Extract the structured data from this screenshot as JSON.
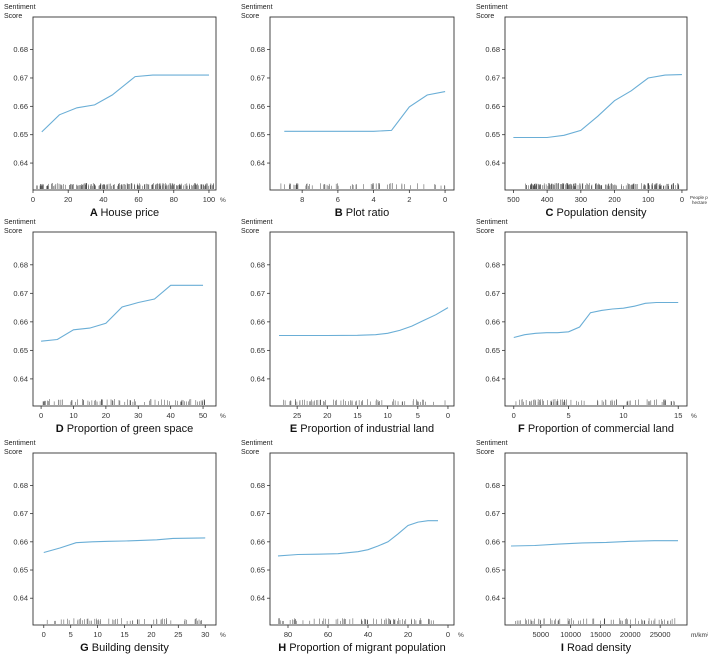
{
  "figure": {
    "y_label_line1": "Sentiment",
    "y_label_line2": "Score"
  },
  "colors": {
    "line": "#6aaed6",
    "frame": "#333333",
    "rug": "#444444"
  },
  "chart_data": [
    {
      "type": "line",
      "letter": "A",
      "title": "House price",
      "unit": "%",
      "xlim": [
        0,
        104
      ],
      "reversed": false,
      "xticks": [
        0,
        20,
        40,
        60,
        80,
        100
      ],
      "ylim": [
        0.6305,
        0.6915
      ],
      "yticks": [
        0.64,
        0.65,
        0.66,
        0.67,
        0.68
      ],
      "x": [
        5,
        15,
        25,
        35,
        45,
        58,
        68,
        80,
        90,
        100
      ],
      "y": [
        0.651,
        0.657,
        0.6595,
        0.6605,
        0.664,
        0.6705,
        0.671,
        0.671,
        0.671,
        0.671
      ],
      "rug": {
        "start": 2,
        "end": 103,
        "count": 210,
        "seed": 11,
        "density": "dense"
      }
    },
    {
      "type": "line",
      "letter": "B",
      "title": "Plot ratio",
      "unit": "",
      "xlim": [
        9.8,
        -0.5
      ],
      "reversed": true,
      "xticks": [
        8,
        6,
        4,
        2,
        0
      ],
      "ylim": [
        0.6305,
        0.6915
      ],
      "yticks": [
        0.64,
        0.65,
        0.66,
        0.67,
        0.68
      ],
      "x": [
        9,
        8,
        6,
        4,
        3,
        2,
        1,
        0
      ],
      "y": [
        0.6512,
        0.6512,
        0.6512,
        0.6512,
        0.6515,
        0.6598,
        0.664,
        0.6652
      ],
      "rug": {
        "start": 9.2,
        "end": 0,
        "count": 60,
        "seed": 23,
        "density": "sparse"
      }
    },
    {
      "type": "line",
      "letter": "C",
      "title": "Population density",
      "unit": "People per hectare",
      "xlim": [
        525,
        -15
      ],
      "reversed": true,
      "xticks": [
        500,
        400,
        300,
        200,
        100,
        0
      ],
      "ylim": [
        0.6305,
        0.6915
      ],
      "yticks": [
        0.64,
        0.65,
        0.66,
        0.67,
        0.68
      ],
      "x": [
        500,
        400,
        350,
        300,
        250,
        200,
        150,
        100,
        50,
        0
      ],
      "y": [
        0.649,
        0.649,
        0.6498,
        0.6515,
        0.6565,
        0.662,
        0.6655,
        0.67,
        0.671,
        0.6712
      ],
      "rug": {
        "start": 470,
        "end": 0,
        "count": 190,
        "seed": 37,
        "density": "dense"
      }
    },
    {
      "type": "line",
      "letter": "D",
      "title": "Proportion of green space",
      "unit": "%",
      "xlim": [
        -2.5,
        54
      ],
      "reversed": false,
      "xticks": [
        0,
        10,
        20,
        30,
        40,
        50
      ],
      "ylim": [
        0.6305,
        0.6915
      ],
      "yticks": [
        0.64,
        0.65,
        0.66,
        0.67,
        0.68
      ],
      "x": [
        0,
        5,
        10,
        15,
        20,
        25,
        30,
        35,
        40,
        45,
        50
      ],
      "y": [
        0.6532,
        0.6538,
        0.6572,
        0.6578,
        0.6595,
        0.6652,
        0.6668,
        0.668,
        0.6728,
        0.6728,
        0.6728
      ],
      "rug": {
        "start": 0,
        "end": 51,
        "count": 80,
        "seed": 41,
        "density": "medium"
      }
    },
    {
      "type": "line",
      "letter": "E",
      "title": "Proportion of industrial land",
      "unit": "",
      "xlim": [
        29.5,
        -1
      ],
      "reversed": true,
      "xticks": [
        25,
        20,
        15,
        10,
        5,
        0
      ],
      "ylim": [
        0.6305,
        0.6915
      ],
      "yticks": [
        0.64,
        0.65,
        0.66,
        0.67,
        0.68
      ],
      "x": [
        28,
        25,
        20,
        15,
        12,
        10,
        8,
        6,
        4,
        2,
        0
      ],
      "y": [
        0.6552,
        0.6552,
        0.6552,
        0.6553,
        0.6555,
        0.656,
        0.657,
        0.6585,
        0.6605,
        0.6625,
        0.665
      ],
      "rug": {
        "start": 27.5,
        "end": 0.3,
        "count": 70,
        "seed": 53,
        "density": "medium"
      }
    },
    {
      "type": "line",
      "letter": "F",
      "title": "Proportion of commercial land",
      "unit": "%",
      "xlim": [
        -0.8,
        15.8
      ],
      "reversed": false,
      "xticks": [
        0,
        5,
        10,
        15
      ],
      "ylim": [
        0.6305,
        0.6915
      ],
      "yticks": [
        0.64,
        0.65,
        0.66,
        0.67,
        0.68
      ],
      "x": [
        0,
        1,
        2,
        3,
        4,
        5,
        6,
        7,
        8,
        9,
        10,
        11,
        12,
        13,
        14,
        15
      ],
      "y": [
        0.6545,
        0.6555,
        0.656,
        0.6562,
        0.6562,
        0.6565,
        0.6582,
        0.6632,
        0.664,
        0.6645,
        0.6648,
        0.6655,
        0.6665,
        0.6668,
        0.6668,
        0.6668
      ],
      "rug": {
        "start": 0.2,
        "end": 14.8,
        "count": 80,
        "seed": 67,
        "density": "medium"
      }
    },
    {
      "type": "line",
      "letter": "G",
      "title": "Building density",
      "unit": "%",
      "xlim": [
        -2,
        32
      ],
      "reversed": false,
      "xticks": [
        0,
        5,
        10,
        15,
        20,
        25,
        30
      ],
      "ylim": [
        0.6305,
        0.6915
      ],
      "yticks": [
        0.64,
        0.65,
        0.66,
        0.67,
        0.68
      ],
      "x": [
        0,
        3,
        6,
        9,
        12,
        15,
        18,
        21,
        24,
        27,
        30
      ],
      "y": [
        0.6562,
        0.6578,
        0.6597,
        0.66,
        0.6602,
        0.6603,
        0.6605,
        0.6607,
        0.6612,
        0.6613,
        0.6614
      ],
      "rug": {
        "start": 0.3,
        "end": 29.7,
        "count": 60,
        "seed": 71,
        "density": "medium"
      }
    },
    {
      "type": "line",
      "letter": "H",
      "title": "Proportion of migrant population",
      "unit": "%",
      "xlim": [
        89,
        -3
      ],
      "reversed": true,
      "xticks": [
        80,
        60,
        40,
        20,
        0
      ],
      "ylim": [
        0.6305,
        0.6915
      ],
      "yticks": [
        0.64,
        0.65,
        0.66,
        0.67,
        0.68
      ],
      "x": [
        85,
        75,
        65,
        55,
        45,
        40,
        35,
        30,
        25,
        20,
        15,
        10,
        5
      ],
      "y": [
        0.655,
        0.6555,
        0.6556,
        0.6558,
        0.6565,
        0.6572,
        0.6585,
        0.66,
        0.6628,
        0.6658,
        0.667,
        0.6675,
        0.6675
      ],
      "rug": {
        "start": 86,
        "end": 5,
        "count": 70,
        "seed": 83,
        "density": "medium"
      }
    },
    {
      "type": "line",
      "letter": "I",
      "title": "Road density",
      "unit": "m/km²",
      "xlim": [
        -1000,
        29500
      ],
      "reversed": false,
      "xticks": [
        5000,
        10000,
        15000,
        20000,
        25000
      ],
      "ylim": [
        0.6305,
        0.6915
      ],
      "yticks": [
        0.64,
        0.65,
        0.66,
        0.67,
        0.68
      ],
      "x": [
        0,
        4000,
        8000,
        12000,
        16000,
        20000,
        24000,
        28000
      ],
      "y": [
        0.6585,
        0.6587,
        0.6592,
        0.6596,
        0.6598,
        0.6602,
        0.6604,
        0.6604
      ],
      "rug": {
        "start": 500,
        "end": 27500,
        "count": 70,
        "seed": 97,
        "density": "medium"
      }
    }
  ]
}
